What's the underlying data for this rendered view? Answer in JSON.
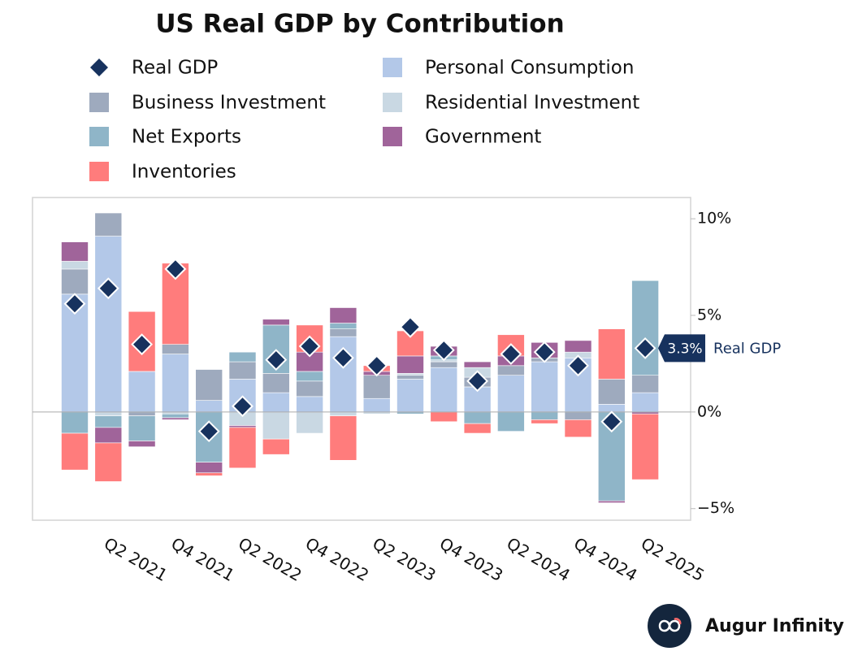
{
  "chart_data": {
    "type": "bar",
    "stacked": true,
    "title": "US Real GDP by Contribution",
    "categories": [
      null,
      "Q2 2021",
      null,
      "Q4 2021",
      null,
      "Q2 2022",
      null,
      "Q4 2022",
      null,
      "Q2 2023",
      null,
      "Q4 2023",
      null,
      "Q2 2024",
      null,
      "Q4 2024",
      null,
      "Q2 2025"
    ],
    "series": [
      {
        "name": "Real GDP",
        "type": "diamond",
        "color": "#17325e",
        "values": [
          5.6,
          6.4,
          3.5,
          7.4,
          -1.0,
          0.3,
          2.7,
          3.4,
          2.8,
          2.4,
          4.4,
          3.2,
          1.6,
          3.0,
          3.1,
          2.4,
          -0.5,
          3.3
        ],
        "value_labels": [
          null,
          null,
          null,
          null,
          null,
          null,
          null,
          null,
          null,
          null,
          null,
          null,
          null,
          null,
          null,
          null,
          null,
          "3.3%"
        ]
      },
      {
        "name": "Personal Consumption",
        "color": "#b3c8e8",
        "values": [
          6.1,
          9.1,
          2.1,
          3.0,
          0.6,
          1.7,
          1.0,
          0.8,
          3.9,
          0.7,
          1.7,
          2.3,
          1.3,
          1.9,
          2.6,
          2.8,
          0.4,
          1.0
        ]
      },
      {
        "name": "Business Investment",
        "color": "#9eaabe",
        "values": [
          1.3,
          1.2,
          -0.2,
          0.5,
          1.6,
          0.9,
          1.0,
          0.8,
          0.4,
          1.2,
          0.2,
          0.3,
          0.5,
          0.5,
          0.2,
          -0.4,
          1.3,
          0.9
        ]
      },
      {
        "name": "Residential Investment",
        "color": "#c9d8e3",
        "values": [
          0.4,
          -0.2,
          0.0,
          -0.1,
          0.0,
          -0.7,
          -1.4,
          -1.1,
          -0.2,
          -0.1,
          0.1,
          0.1,
          0.5,
          0.0,
          0.0,
          0.3,
          0.0,
          0.0
        ]
      },
      {
        "name": "Net Exports",
        "color": "#8fb5c8",
        "values": [
          -1.1,
          -0.6,
          -1.3,
          -0.2,
          -2.6,
          0.5,
          2.5,
          0.5,
          0.3,
          0.0,
          -0.1,
          0.2,
          -0.6,
          -1.0,
          -0.4,
          0.0,
          -4.6,
          4.9
        ]
      },
      {
        "name": "Government",
        "color": "#a0649a",
        "values": [
          1.0,
          -0.8,
          -0.3,
          -0.1,
          -0.55,
          -0.1,
          0.3,
          1.0,
          0.8,
          0.2,
          0.9,
          0.5,
          0.3,
          0.5,
          0.8,
          0.6,
          -0.1,
          -0.1
        ]
      },
      {
        "name": "Inventories",
        "color": "#ff7c7c",
        "values": [
          -1.9,
          -2.0,
          3.1,
          4.2,
          -0.15,
          -2.1,
          -0.8,
          1.4,
          -2.3,
          0.3,
          1.3,
          -0.5,
          -0.5,
          1.1,
          -0.2,
          -0.9,
          2.6,
          -3.4
        ]
      }
    ],
    "ylim": [
      -5.6,
      11.1
    ],
    "yticks": [
      {
        "value": 10,
        "label": "10%"
      },
      {
        "value": 5,
        "label": "5%"
      },
      {
        "value": 0,
        "label": "0%"
      },
      {
        "value": -5,
        "label": "−5%"
      }
    ],
    "zero_line": true,
    "legend": "top"
  },
  "footer": "Augur Infinity"
}
